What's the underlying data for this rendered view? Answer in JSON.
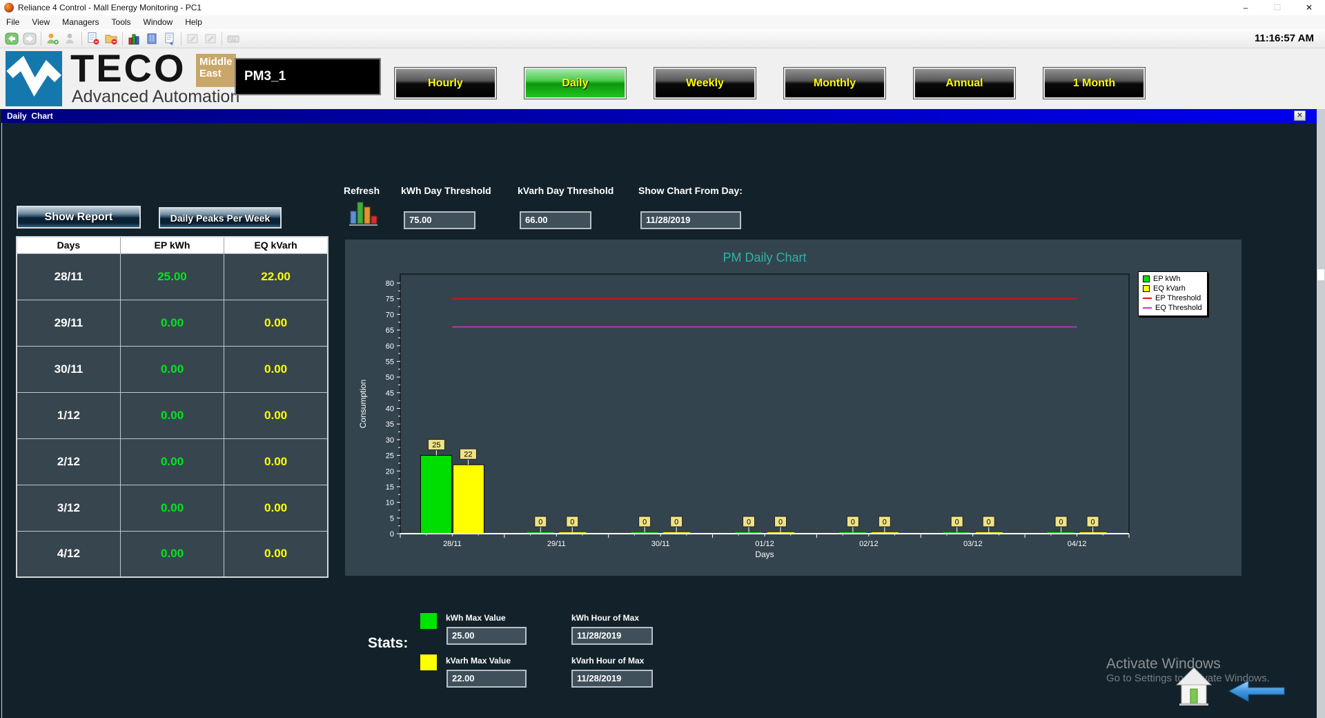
{
  "titlebar": {
    "title": "Reliance 4 Control - Mall Energy Monitoring - PC1",
    "minimize": "–",
    "maximize": "☐",
    "close": "✕"
  },
  "menubar": {
    "items": [
      "File",
      "View",
      "Managers",
      "Tools",
      "Window",
      "Help"
    ]
  },
  "toolbar": {
    "time": "11:16:57 AM"
  },
  "brand": {
    "logo_text": "TECO",
    "badge": "Middle East",
    "subtitle": "Advanced Automation",
    "device_id": "PM3_1"
  },
  "periods": {
    "buttons": [
      {
        "label": "Hourly",
        "active": false
      },
      {
        "label": "Daily",
        "active": true
      },
      {
        "label": "Weekly",
        "active": false
      },
      {
        "label": "Monthly",
        "active": false
      },
      {
        "label": "Annual",
        "active": false
      },
      {
        "label": "1 Month",
        "active": false
      }
    ]
  },
  "subwindow": {
    "title": "Daily  Chart",
    "close": "✕"
  },
  "controls": {
    "show_report": "Show Report",
    "daily_peaks": "Daily Peaks Per Week",
    "refresh": "Refresh",
    "kwh_threshold_label": "kWh Day Threshold",
    "kwh_threshold_value": "75.00",
    "kvarh_threshold_label": "kVarh Day Threshold",
    "kvarh_threshold_value": "66.00",
    "from_day_label": "Show Chart From Day:",
    "from_day_value": "11/28/2019"
  },
  "table": {
    "headers": [
      "Days",
      "EP kWh",
      "EQ kVarh"
    ],
    "rows": [
      [
        "28/11",
        "25.00",
        "22.00"
      ],
      [
        "29/11",
        "0.00",
        "0.00"
      ],
      [
        "30/11",
        "0.00",
        "0.00"
      ],
      [
        "1/12",
        "0.00",
        "0.00"
      ],
      [
        "2/12",
        "0.00",
        "0.00"
      ],
      [
        "3/12",
        "0.00",
        "0.00"
      ],
      [
        "4/12",
        "0.00",
        "0.00"
      ]
    ]
  },
  "chart_data": {
    "type": "bar",
    "title": "PM Daily Chart",
    "xlabel": "Days",
    "ylabel": "Consumption",
    "ylim": [
      0,
      80
    ],
    "ytick_step": 5,
    "grid": false,
    "legend_position": "top-right",
    "categories": [
      "28/11",
      "29/11",
      "30/11",
      "01/12",
      "02/12",
      "03/12",
      "04/12"
    ],
    "series": [
      {
        "name": "EP kWh",
        "color": "#00dd00",
        "values": [
          25,
          0,
          0,
          0,
          0,
          0,
          0
        ]
      },
      {
        "name": "EQ kVarh",
        "color": "#ffff00",
        "values": [
          22,
          0,
          0,
          0,
          0,
          0,
          0
        ]
      }
    ],
    "threshold_lines": [
      {
        "name": "EP Threshold",
        "color": "#e01010",
        "value": 75
      },
      {
        "name": "EQ Threshold",
        "color": "#cc33cc",
        "value": 66
      }
    ],
    "label_box_color": "#efe387",
    "title_color": "#2db3a6"
  },
  "stats": {
    "label": "Stats:",
    "kwh_max_label": "kWh Max Value",
    "kwh_max_value": "25.00",
    "kwh_hour_label": "kWh Hour of Max",
    "kwh_hour_value": "11/28/2019",
    "kvarh_max_label": "kVarh Max Value",
    "kvarh_max_value": "22.00",
    "kvarh_hour_label": "kVarh Hour of Max",
    "kvarh_hour_value": "11/28/2019"
  },
  "watermark": {
    "line1": "Activate Windows",
    "line2": "Go to Settings to activate Windows."
  },
  "colors": {
    "accent_green": "#00dd00",
    "accent_yellow": "#ffff00",
    "threshold_red": "#e01010",
    "threshold_magenta": "#cc33cc",
    "title_teal": "#2db3a6",
    "active_period": "#21c421",
    "subwin_bar": "#0000c8"
  }
}
